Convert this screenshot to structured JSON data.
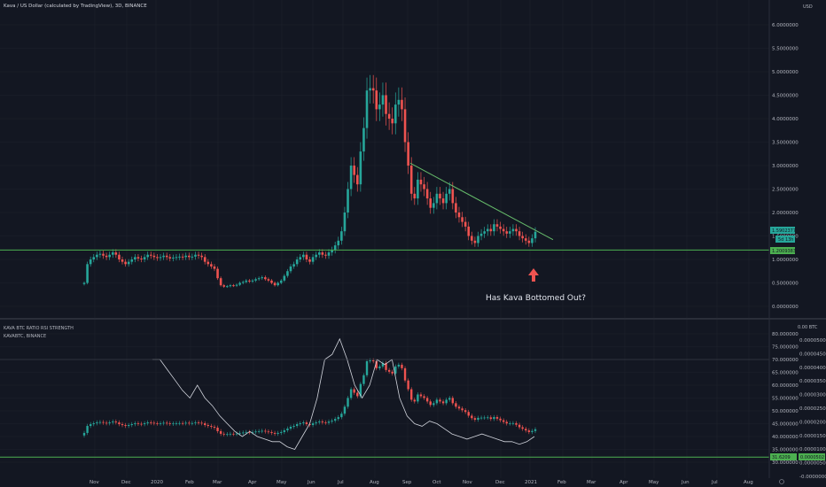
{
  "header": {
    "title": "Kava / US Dollar (calculated by TradingView), 3D, BINANCE",
    "currency": "USD"
  },
  "lower_header": {
    "title": "KAVA BTC RATIO RSI STRENGTH",
    "subtitle": "KAVABTC, BINANCE",
    "right_tag": "0.00 BTC"
  },
  "annotation": {
    "text": "Has Kava Bottomed Out?"
  },
  "price_tags": {
    "last": "1.5902377",
    "countdown": "5d 13h",
    "support": "1.2009383"
  },
  "lower_tags": {
    "rsi": "31.6209",
    "ratio": "0.0000502"
  },
  "colors": {
    "background": "#131722",
    "up": "#26a69a",
    "down": "#ef5350",
    "support_line": "#4caf50",
    "trend_line": "#66bb6a",
    "rsi_line": "#d1d4dc",
    "arrow": "#ef5350"
  },
  "chart_data": [
    {
      "type": "candlestick",
      "ylim": [
        0,
        6
      ],
      "y_ticks": [
        "6.0000000",
        "5.5000000",
        "5.0000000",
        "4.5000000",
        "4.0000000",
        "3.5000000",
        "3.0000000",
        "2.5000000",
        "2.0000000",
        "1.5000000",
        "1.0000000",
        "0.5000000",
        "0.0000000"
      ],
      "x_ticks": [
        "Nov",
        "Dec",
        "2020",
        "Feb",
        "Mar",
        "Apr",
        "May",
        "Jun",
        "Jul",
        "Aug",
        "Sep",
        "Oct",
        "Nov",
        "Dec",
        "2021",
        "Feb",
        "Mar",
        "Apr",
        "May",
        "Jun",
        "Jul",
        "Aug"
      ],
      "support_level": 1.2,
      "trendline": {
        "from": [
          "Sep 2020",
          3.05
        ],
        "to": [
          "Jan 2021",
          1.42
        ]
      },
      "close_series": [
        0.5,
        0.9,
        1.0,
        1.05,
        1.1,
        1.12,
        1.08,
        1.05,
        1.1,
        1.15,
        1.1,
        1.0,
        0.95,
        0.9,
        0.95,
        1.0,
        1.05,
        1.02,
        1.0,
        1.05,
        1.1,
        1.08,
        1.05,
        1.03,
        1.05,
        1.08,
        1.05,
        1.02,
        1.04,
        1.05,
        1.06,
        1.05,
        1.08,
        1.05,
        1.06,
        1.1,
        1.08,
        1.05,
        0.95,
        0.9,
        0.85,
        0.8,
        0.6,
        0.45,
        0.42,
        0.43,
        0.45,
        0.44,
        0.46,
        0.5,
        0.52,
        0.55,
        0.53,
        0.55,
        0.58,
        0.6,
        0.62,
        0.58,
        0.55,
        0.5,
        0.45,
        0.5,
        0.55,
        0.65,
        0.75,
        0.85,
        0.9,
        1.0,
        1.05,
        1.1,
        1.0,
        0.95,
        1.05,
        1.1,
        1.15,
        1.1,
        1.08,
        1.15,
        1.2,
        1.3,
        1.4,
        1.6,
        2.0,
        2.5,
        3.0,
        2.8,
        2.6,
        3.3,
        3.8,
        4.6,
        4.65,
        4.6,
        4.2,
        4.3,
        4.5,
        4.1,
        4.0,
        3.9,
        4.3,
        4.4,
        4.2,
        3.5,
        3.0,
        2.4,
        2.3,
        2.7,
        2.6,
        2.5,
        2.3,
        2.1,
        2.2,
        2.4,
        2.3,
        2.2,
        2.4,
        2.5,
        2.2,
        2.0,
        1.9,
        1.8,
        1.7,
        1.5,
        1.4,
        1.35,
        1.5,
        1.55,
        1.6,
        1.65,
        1.6,
        1.75,
        1.7,
        1.65,
        1.6,
        1.55,
        1.6,
        1.65,
        1.6,
        1.5,
        1.45,
        1.4,
        1.35,
        1.45,
        1.59
      ],
      "high_series_note": "wicks approximated",
      "last_price": 1.5902377
    },
    {
      "type": "line+candlestick",
      "left_axis": "ratio",
      "right_axis": "rsi",
      "rsi_ylim": [
        30,
        80
      ],
      "rsi_ticks": [
        "80.000000",
        "75.000000",
        "70.000000",
        "65.000000",
        "60.000000",
        "55.000000",
        "50.000000",
        "45.000000",
        "40.000000",
        "35.000000",
        "30.000000"
      ],
      "ratio_ticks": [
        "0.0000500",
        "0.0000450",
        "0.0000400",
        "0.0000350",
        "0.0000300",
        "0.0000250",
        "0.0000200",
        "0.0000150",
        "0.0000100",
        "0.0000050",
        "-0.0000000"
      ],
      "reference_levels": [
        70,
        32
      ],
      "rsi_values": [
        70,
        70,
        66,
        62,
        58,
        55,
        60,
        55,
        52,
        48,
        45,
        42,
        40,
        42,
        40,
        39,
        38,
        38,
        36,
        35,
        40,
        45,
        55,
        70,
        72,
        78,
        70,
        60,
        55,
        60,
        70,
        68,
        70,
        55,
        48,
        45,
        44,
        46,
        45,
        43,
        41,
        40,
        39,
        40,
        41,
        40,
        39,
        38,
        38,
        37,
        38,
        40
      ]
    }
  ]
}
